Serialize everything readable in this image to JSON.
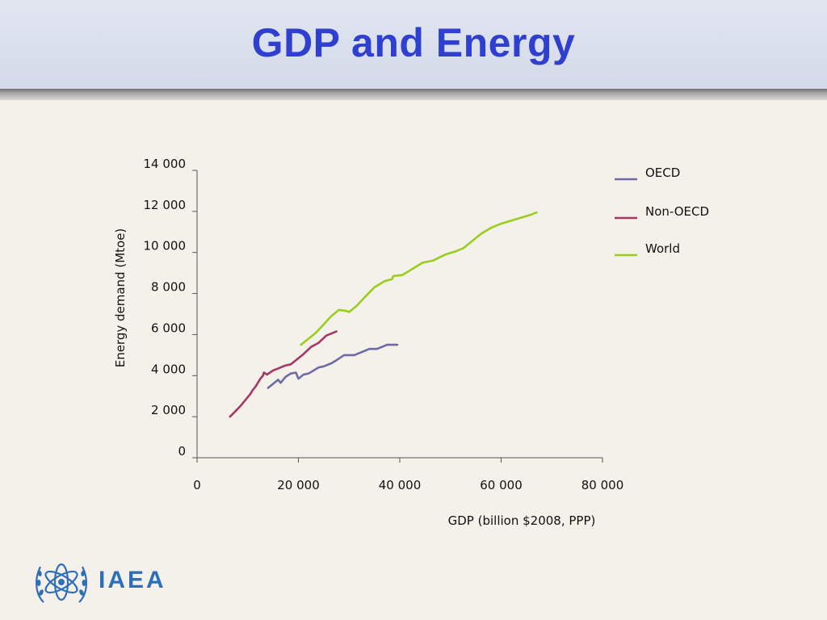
{
  "slide": {
    "title": "GDP and Energy",
    "logo_text": "IAEA"
  },
  "colors": {
    "title": "#2f3fd0",
    "OECD": "#6d6aa6",
    "Non-OECD": "#a63663",
    "World": "#9acd1e",
    "logo": "#2f6fb8"
  },
  "chart_data": {
    "type": "line",
    "xlabel": "GDP (billion  $2008, PPP)",
    "ylabel": "Energy demand (Mtoe)",
    "xlim": [
      0,
      80000
    ],
    "ylim": [
      0,
      14000
    ],
    "x_ticks": [
      0,
      20000,
      40000,
      60000,
      80000
    ],
    "x_tick_labels": [
      "0",
      "20 000",
      "40 000",
      "60 000",
      "80 000"
    ],
    "y_ticks": [
      0,
      2000,
      4000,
      6000,
      8000,
      10000,
      12000,
      14000
    ],
    "y_tick_labels": [
      "0",
      "2 000",
      "4 000",
      "6 000",
      "8 000",
      "10 000",
      "12 000",
      "14 000"
    ],
    "legend_position": "right",
    "grid": false,
    "series": [
      {
        "name": "OECD",
        "color": "#6d6aa6",
        "x": [
          14000,
          15000,
          16000,
          16500,
          17500,
          18500,
          19500,
          20000,
          21000,
          22000,
          24000,
          25000,
          26500,
          27500,
          29000,
          31000,
          33000,
          34000,
          35500,
          36500,
          37500,
          38500,
          39500
        ],
        "y": [
          3400,
          3600,
          3800,
          3650,
          3950,
          4100,
          4150,
          3850,
          4050,
          4100,
          4400,
          4450,
          4600,
          4750,
          5000,
          5000,
          5200,
          5300,
          5300,
          5400,
          5500,
          5500,
          5500
        ]
      },
      {
        "name": "Non-OECD",
        "color": "#a63663",
        "x": [
          6500,
          7500,
          8500,
          9500,
          10500,
          11000,
          11500,
          12000,
          12500,
          13000,
          13200,
          13800,
          15000,
          16000,
          17500,
          18500,
          19500,
          21000,
          22500,
          24000,
          25500,
          27500
        ],
        "y": [
          2000,
          2250,
          2500,
          2800,
          3100,
          3300,
          3450,
          3650,
          3850,
          4000,
          4150,
          4050,
          4250,
          4350,
          4500,
          4550,
          4750,
          5050,
          5400,
          5600,
          5950,
          6150
        ]
      },
      {
        "name": "World",
        "color": "#9acd1e",
        "x": [
          20500,
          22000,
          23500,
          25000,
          26500,
          28000,
          29500,
          30000,
          31500,
          33000,
          35000,
          37000,
          38500,
          38700,
          40500,
          42500,
          44500,
          46500,
          49000,
          51000,
          52500,
          54000,
          56000,
          58000,
          60000,
          62000,
          64000,
          66000,
          67000
        ],
        "y": [
          5500,
          5800,
          6100,
          6500,
          6900,
          7200,
          7150,
          7100,
          7400,
          7800,
          8300,
          8600,
          8700,
          8850,
          8900,
          9200,
          9500,
          9600,
          9900,
          10050,
          10200,
          10500,
          10900,
          11200,
          11400,
          11550,
          11700,
          11850,
          11950
        ]
      }
    ]
  }
}
